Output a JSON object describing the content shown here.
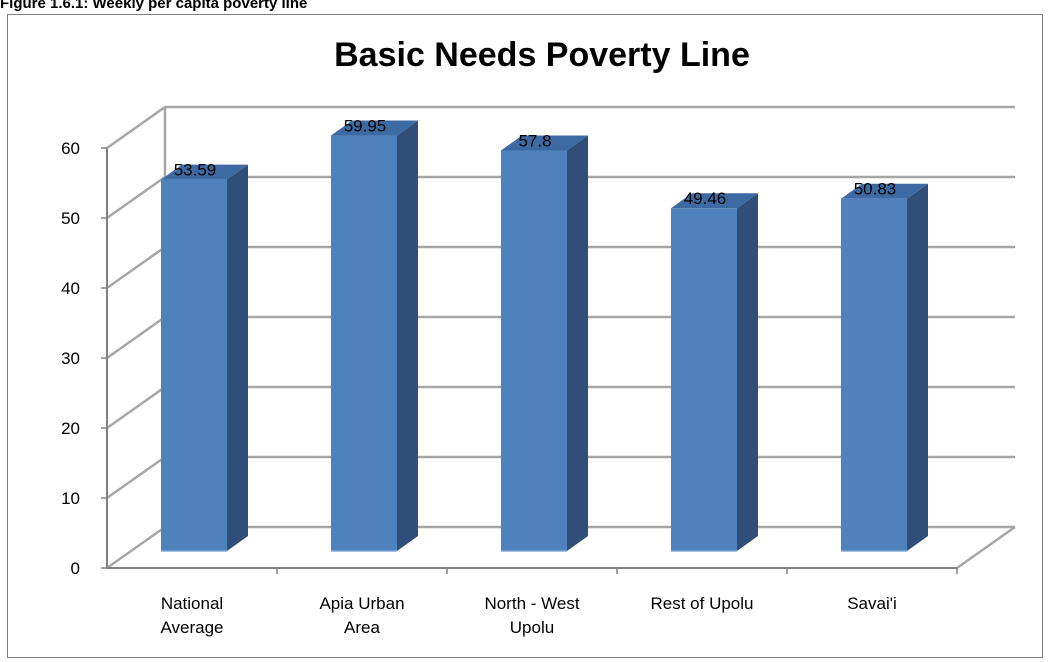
{
  "caption": "Figure 1.6.1: Weekly per capita poverty line",
  "chart_data": {
    "type": "bar",
    "title": "Basic Needs Poverty Line",
    "categories": [
      [
        "National",
        "Average"
      ],
      [
        "Apia Urban",
        "Area"
      ],
      [
        "North - West",
        "Upolu"
      ],
      [
        "Rest of Upolu"
      ],
      [
        "Savai'i"
      ]
    ],
    "values": [
      53.59,
      59.95,
      57.8,
      49.46,
      50.83
    ],
    "data_labels": [
      "53.59",
      "59.95",
      "57.8",
      "49.46",
      "50.83"
    ],
    "y_ticks": [
      "0",
      "10",
      "20",
      "30",
      "40",
      "50",
      "60"
    ],
    "ylim": [
      0,
      60
    ],
    "grid": true,
    "legend": "none",
    "colors": {
      "bar_front": "#4f81bd",
      "bar_side": "#2f4f79",
      "bar_top": "#3e6aa3",
      "grid": "#a6a6a6",
      "axis": "#808080"
    }
  }
}
